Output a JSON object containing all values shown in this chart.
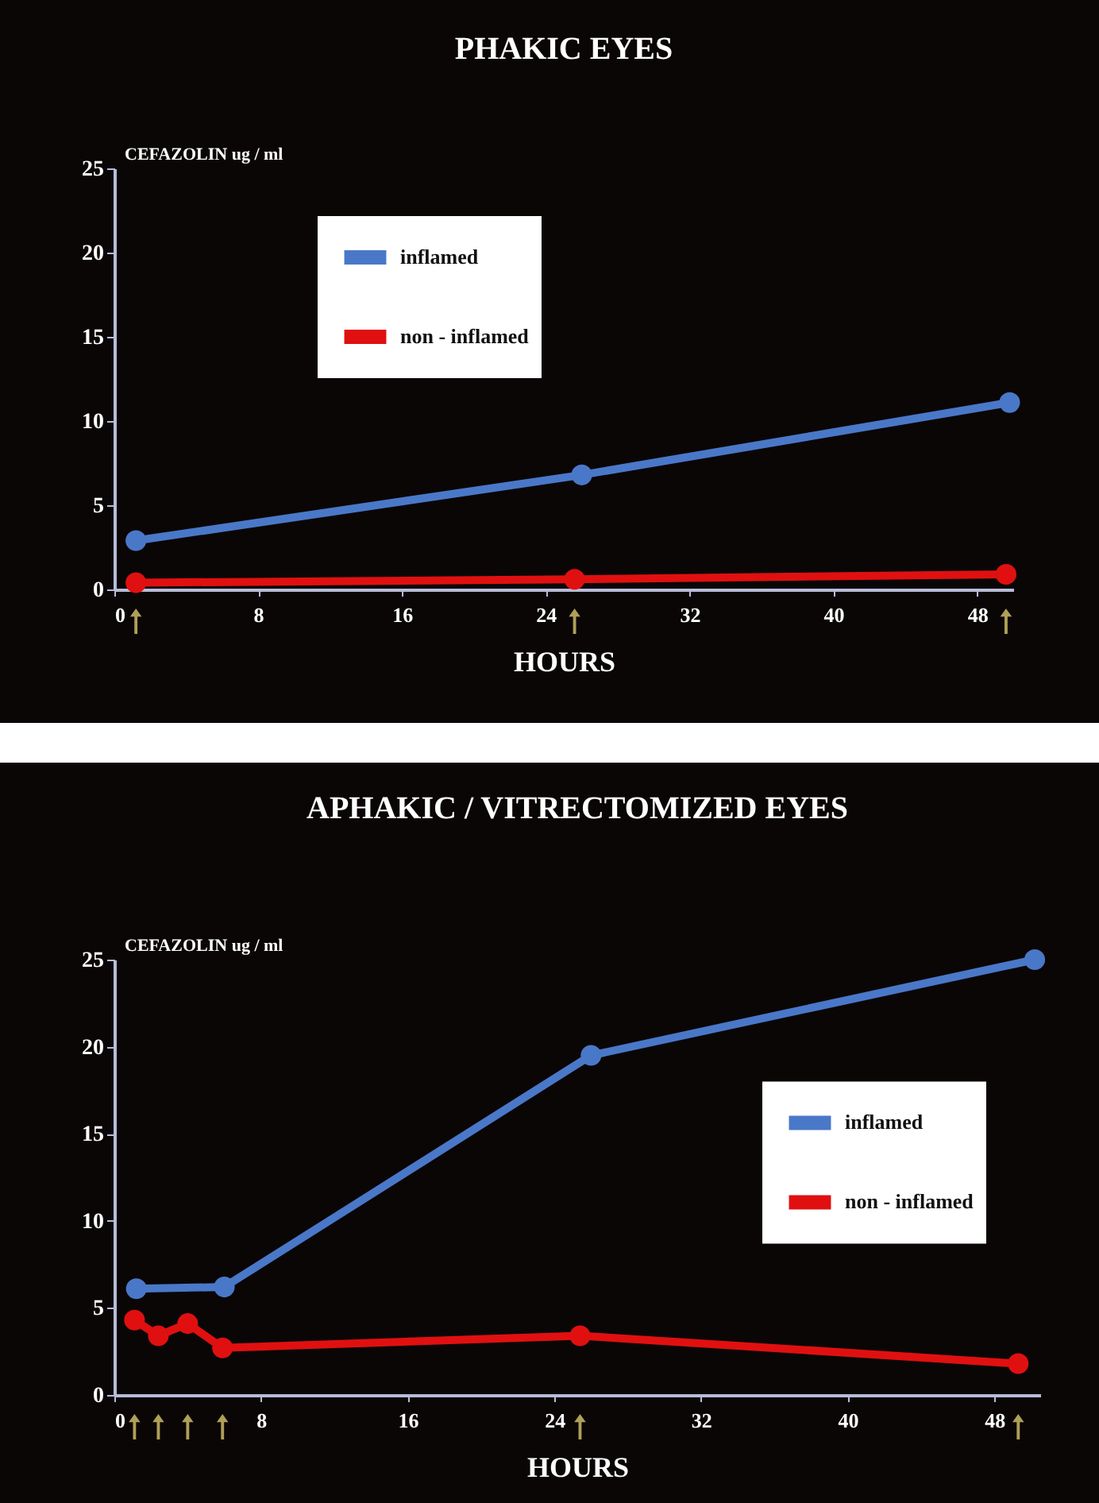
{
  "chart_data": [
    {
      "type": "line",
      "title": "PHAKIC EYES",
      "xlabel": "HOURS",
      "ylabel": "CEFAZOLIN ug / ml",
      "xlim": [
        0,
        50
      ],
      "xticks": [
        0,
        8,
        16,
        24,
        32,
        40,
        48
      ],
      "ylim": [
        0,
        25
      ],
      "yticks": [
        0,
        5,
        10,
        15,
        20,
        25
      ],
      "grid": false,
      "legend": "top left",
      "marker": "circle",
      "series": [
        {
          "name": "inflamed",
          "color": "#4a78c8",
          "x": [
            1.2,
            26,
            49.8
          ],
          "values": [
            2.9,
            6.8,
            11.1
          ]
        },
        {
          "name": "non - inflamed",
          "color": "#e01010",
          "x": [
            1.2,
            25.6,
            49.6
          ],
          "values": [
            0.4,
            0.6,
            0.9
          ]
        }
      ]
    },
    {
      "type": "line",
      "title": "APHAKIC / VITRECTOMIZED EYES",
      "xlabel": "HOURS",
      "ylabel": "CEFAZOLIN ug / ml",
      "xlim": [
        0,
        50.5
      ],
      "xticks": [
        0,
        8,
        16,
        24,
        32,
        40,
        48
      ],
      "ylim": [
        0,
        25
      ],
      "yticks": [
        0,
        5,
        10,
        15,
        20,
        25
      ],
      "grid": false,
      "legend": "right",
      "marker": "circle",
      "series": [
        {
          "name": "inflamed",
          "color": "#4a78c8",
          "x": [
            1.2,
            6.0,
            26,
            50.2
          ],
          "values": [
            6.1,
            6.2,
            19.5,
            25
          ]
        },
        {
          "name": "non - inflamed",
          "color": "#e01010",
          "x": [
            1.1,
            2.4,
            4.0,
            5.9,
            25.4,
            49.3
          ],
          "values": [
            4.3,
            3.4,
            4.1,
            2.7,
            3.4,
            1.8
          ]
        }
      ]
    }
  ]
}
